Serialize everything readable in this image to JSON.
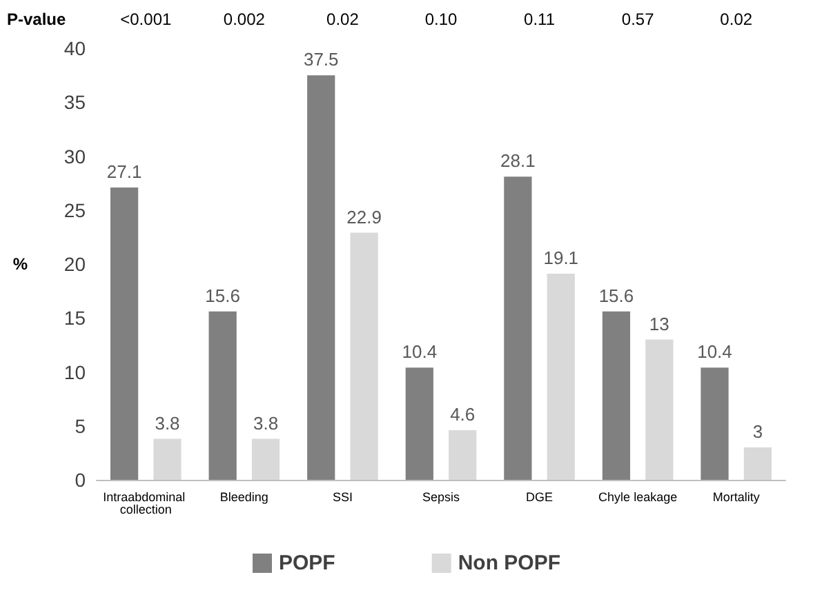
{
  "chart_data": {
    "type": "bar",
    "ylabel": "%",
    "categories": [
      "Intraabdominal collection",
      "Bleeding",
      "SSI",
      "Sepsis",
      "DGE",
      "Chyle leakage",
      "Mortality"
    ],
    "series": [
      {
        "name": "POPF",
        "color": "#808080",
        "values": [
          27.1,
          15.6,
          37.5,
          10.4,
          28.1,
          15.6,
          10.4
        ]
      },
      {
        "name": "Non POPF",
        "color": "#d9d9d9",
        "values": [
          3.8,
          3.8,
          22.9,
          4.6,
          19.1,
          13,
          3
        ]
      }
    ],
    "ylim": [
      0,
      40
    ],
    "yticks": [
      0,
      5,
      10,
      15,
      20,
      25,
      30,
      35,
      40
    ],
    "grid": false,
    "legend": "bottom",
    "data_labels": true,
    "annotations": [
      "P-value",
      "<0.001",
      "0.002",
      "0.02",
      "0.10",
      "0.11",
      "0.57",
      "0.02"
    ]
  }
}
